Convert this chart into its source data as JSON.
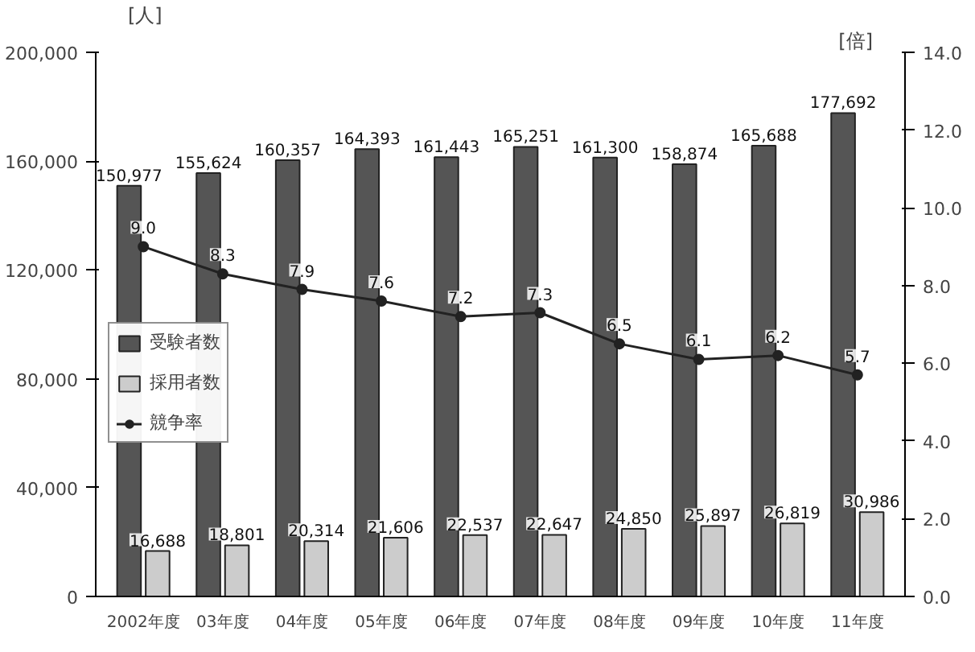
{
  "chart_data": {
    "type": "bar",
    "ylabel": "[人]",
    "y2label": "[倍]",
    "categories": [
      "2002年度",
      "03年度",
      "04年度",
      "05年度",
      "06年度",
      "07年度",
      "08年度",
      "09年度",
      "10年度",
      "11年度"
    ],
    "series": [
      {
        "name": "受験者数",
        "color": "#555555",
        "values": [
          150977,
          155624,
          160357,
          164393,
          161443,
          165251,
          161300,
          158874,
          165688,
          177692
        ],
        "value_labels": [
          "150,977",
          "155,624",
          "160,357",
          "164,393",
          "161,443",
          "165,251",
          "161,300",
          "158,874",
          "165,688",
          "177,692"
        ]
      },
      {
        "name": "採用者数",
        "color": "#cccccc",
        "values": [
          16688,
          18801,
          20314,
          21606,
          22537,
          22647,
          24850,
          25897,
          26819,
          30986
        ],
        "value_labels": [
          "16,688",
          "18,801",
          "20,314",
          "21,606",
          "22,537",
          "22,647",
          "24,850",
          "25,897",
          "26,819",
          "30,986"
        ]
      },
      {
        "name": "競争率",
        "type": "line",
        "axis": "y2",
        "color": "#222222",
        "marker": "circle",
        "values": [
          9.0,
          8.3,
          7.9,
          7.6,
          7.2,
          7.3,
          6.5,
          6.1,
          6.2,
          5.7
        ],
        "value_labels": [
          "9.0",
          "8.3",
          "7.9",
          "7.6",
          "7.2",
          "7.3",
          "6.5",
          "6.1",
          "6.2",
          "5.7"
        ]
      }
    ],
    "ylim": [
      0,
      200000
    ],
    "yticks": [
      {
        "value": 0,
        "label": "0"
      },
      {
        "value": 40000,
        "label": "40,000"
      },
      {
        "value": 80000,
        "label": "80,000"
      },
      {
        "value": 120000,
        "label": "120,000"
      },
      {
        "value": 160000,
        "label": "160,000"
      },
      {
        "value": 200000,
        "label": "200,000"
      }
    ],
    "y2lim": [
      0,
      14
    ],
    "y2ticks": [
      {
        "value": 0,
        "label": "0.0"
      },
      {
        "value": 2,
        "label": "2.0"
      },
      {
        "value": 4,
        "label": "4.0"
      },
      {
        "value": 6,
        "label": "6.0"
      },
      {
        "value": 8,
        "label": "8.0"
      },
      {
        "value": 10,
        "label": "10.0"
      },
      {
        "value": 12,
        "label": "12.0"
      },
      {
        "value": 14,
        "label": "14.0"
      }
    ],
    "grid": false,
    "legend": "left"
  }
}
